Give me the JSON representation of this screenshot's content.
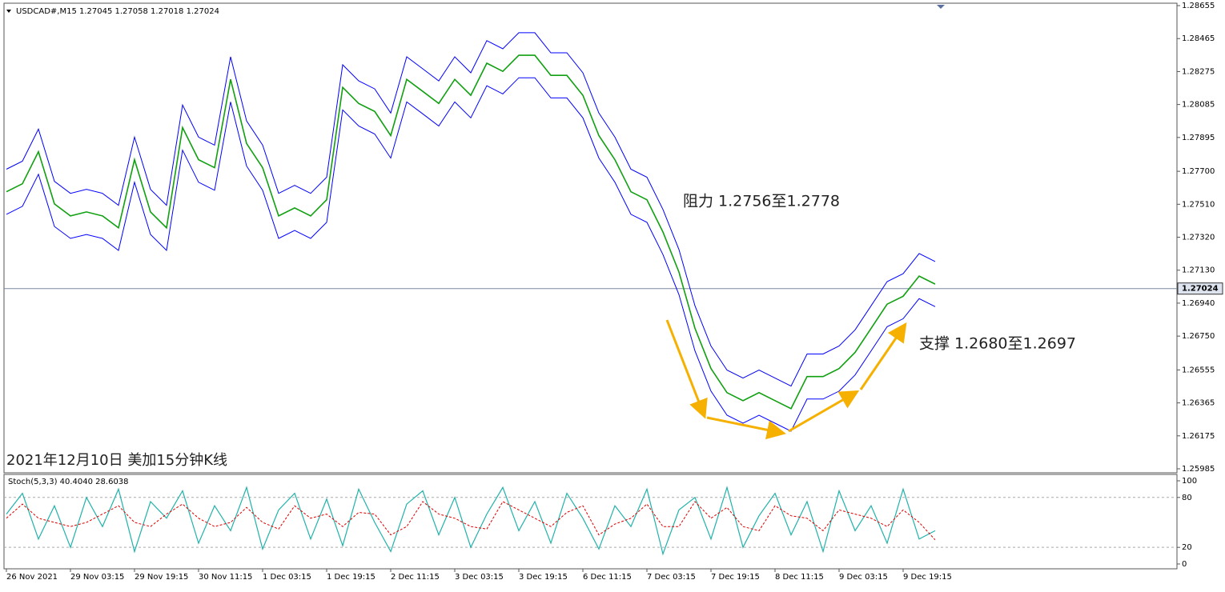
{
  "chart_data": [
    {
      "type": "line",
      "header": "USDCAD#,M15  1.27045 1.27058 1.27018 1.27024",
      "caption": "2021年12月10日 美加15分钟K线",
      "annotations": [
        "阻力 1.2756至1.2778",
        "支撑 1.2680至1.2697"
      ],
      "last_price": 1.27024,
      "xlim": [
        -2.4,
        1169.6
      ],
      "ylim": [
        1.25962,
        1.28669
      ],
      "yticks": [
        1.28655,
        1.28465,
        1.28275,
        1.28085,
        1.27895,
        {
          "value": 1.277,
          "label": "1.27700"
        },
        {
          "value": 1.2751,
          "label": "1.27510"
        },
        {
          "value": 1.2732,
          "label": "1.27320"
        },
        {
          "value": 1.2713,
          "label": "1.27130"
        },
        {
          "value": 1.2694,
          "label": "1.26940"
        },
        {
          "value": 1.2675,
          "label": "1.26750"
        },
        1.26555,
        1.26365,
        1.26175,
        1.25985
      ],
      "x": [
        0,
        16,
        32,
        48,
        64,
        80,
        96,
        112,
        128,
        144,
        160,
        176,
        192,
        208,
        224,
        240,
        256,
        272,
        288,
        304,
        320,
        336,
        352,
        368,
        384,
        400,
        416,
        432,
        448,
        464,
        480,
        496,
        512,
        528,
        544,
        560,
        576,
        592,
        608,
        624,
        640,
        656,
        672,
        688,
        704,
        720,
        736,
        752,
        768,
        784,
        800,
        816,
        832,
        848,
        864,
        880,
        896,
        912,
        928
      ],
      "series": [
        {
          "name": "Close",
          "color": "#10a010",
          "width": 1.6,
          "values": [
            1.27582,
            1.27628,
            1.27813,
            1.27512,
            1.27443,
            1.27466,
            1.27443,
            1.27374,
            1.27767,
            1.27466,
            1.27374,
            1.27952,
            1.27767,
            1.27721,
            1.2823,
            1.2786,
            1.27721,
            1.27443,
            1.27489,
            1.27443,
            1.27536,
            1.28184,
            1.28091,
            1.28045,
            1.27906,
            1.2823,
            1.28161,
            1.28091,
            1.2823,
            1.28138,
            1.28323,
            1.28276,
            1.28369,
            1.28369,
            1.28253,
            1.28253,
            1.28138,
            1.27906,
            1.27767,
            1.27582,
            1.27536,
            1.2735,
            1.27119,
            1.26795,
            1.26563,
            1.26424,
            1.26378,
            1.26424,
            1.26378,
            1.26332,
            1.26517,
            1.26517,
            1.26563,
            1.26656,
            1.26795,
            1.26934,
            1.2698,
            1.27096,
            1.2705
          ]
        },
        {
          "name": "Upper",
          "color": "#0000ff",
          "width": 1,
          "values": [
            1.27712,
            1.27758,
            1.27943,
            1.27642,
            1.27573,
            1.27596,
            1.27573,
            1.27504,
            1.27897,
            1.27596,
            1.27504,
            1.28082,
            1.27897,
            1.27851,
            1.2836,
            1.2799,
            1.27851,
            1.27573,
            1.27619,
            1.27573,
            1.27666,
            1.28314,
            1.28221,
            1.28175,
            1.28036,
            1.2836,
            1.28291,
            1.28221,
            1.2836,
            1.28268,
            1.28453,
            1.28406,
            1.28499,
            1.28499,
            1.28383,
            1.28383,
            1.28268,
            1.28036,
            1.27897,
            1.27712,
            1.27666,
            1.2748,
            1.27249,
            1.26925,
            1.26693,
            1.26554,
            1.26508,
            1.26554,
            1.26508,
            1.26462,
            1.26647,
            1.26647,
            1.26693,
            1.26786,
            1.26925,
            1.27064,
            1.2711,
            1.27226,
            1.2718
          ]
        },
        {
          "name": "Lower",
          "color": "#0000ff",
          "width": 1,
          "values": [
            1.27452,
            1.27498,
            1.27683,
            1.27382,
            1.27313,
            1.27336,
            1.27313,
            1.27244,
            1.27637,
            1.27336,
            1.27244,
            1.27822,
            1.27637,
            1.27591,
            1.281,
            1.2773,
            1.27591,
            1.27313,
            1.27359,
            1.27313,
            1.27406,
            1.28054,
            1.27961,
            1.27915,
            1.27776,
            1.281,
            1.28031,
            1.27961,
            1.281,
            1.28008,
            1.28193,
            1.28146,
            1.28239,
            1.28239,
            1.28123,
            1.28123,
            1.28008,
            1.27776,
            1.27637,
            1.27452,
            1.27406,
            1.2722,
            1.26989,
            1.26665,
            1.26433,
            1.26294,
            1.26248,
            1.26294,
            1.26248,
            1.26202,
            1.26387,
            1.26387,
            1.26433,
            1.26526,
            1.26665,
            1.26804,
            1.2685,
            1.26966,
            1.2692
          ]
        }
      ]
    },
    {
      "type": "line",
      "label": "Stoch(5,3,3) 40.4040 28.6038",
      "xlim": [
        -2.4,
        1169.6
      ],
      "ylim": [
        -5.8,
        107.7
      ],
      "yticks": [
        0,
        20,
        80,
        100
      ],
      "levels": [
        20,
        80
      ],
      "xticks": [
        {
          "value": 0,
          "label": "26 Nov 2021"
        },
        {
          "value": 64,
          "label": "29 Nov 03:15"
        },
        {
          "value": 128,
          "label": "29 Nov 19:15"
        },
        {
          "value": 192,
          "label": "30 Nov 11:15"
        },
        {
          "value": 256,
          "label": "1 Dec 03:15"
        },
        {
          "value": 320,
          "label": "1 Dec 19:15"
        },
        {
          "value": 384,
          "label": "2 Dec 11:15"
        },
        {
          "value": 448,
          "label": "3 Dec 03:15"
        },
        {
          "value": 512,
          "label": "3 Dec 19:15"
        },
        {
          "value": 576,
          "label": "6 Dec 11:15"
        },
        {
          "value": 640,
          "label": "7 Dec 03:15"
        },
        {
          "value": 704,
          "label": "7 Dec 19:15"
        },
        {
          "value": 768,
          "label": "8 Dec 11:15"
        },
        {
          "value": 832,
          "label": "9 Dec 03:15"
        },
        {
          "value": 896,
          "label": "9 Dec 19:15"
        }
      ],
      "x": [
        0,
        16,
        32,
        48,
        64,
        80,
        96,
        112,
        128,
        144,
        160,
        176,
        192,
        208,
        224,
        240,
        256,
        272,
        288,
        304,
        320,
        336,
        352,
        368,
        384,
        400,
        416,
        432,
        448,
        464,
        480,
        496,
        512,
        528,
        544,
        560,
        576,
        592,
        608,
        624,
        640,
        656,
        672,
        688,
        704,
        720,
        736,
        752,
        768,
        784,
        800,
        816,
        832,
        848,
        864,
        880,
        896,
        912,
        928
      ],
      "series": [
        {
          "name": "Main",
          "color": "#20b2aa",
          "width": 1.2,
          "values": [
            60,
            85,
            30,
            70,
            20,
            80,
            45,
            90,
            15,
            75,
            55,
            88,
            25,
            70,
            40,
            92,
            18,
            65,
            85,
            30,
            78,
            22,
            90,
            50,
            15,
            72,
            88,
            35,
            80,
            20,
            60,
            92,
            40,
            75,
            25,
            85,
            55,
            18,
            70,
            45,
            90,
            12,
            65,
            80,
            30,
            92,
            20,
            58,
            85,
            35,
            75,
            15,
            88,
            40,
            70,
            25,
            90,
            30,
            40
          ]
        },
        {
          "name": "Signal",
          "color": "#e00000",
          "width": 1,
          "dashed": true,
          "values": [
            55,
            72,
            55,
            50,
            45,
            50,
            60,
            70,
            50,
            45,
            60,
            72,
            55,
            45,
            50,
            68,
            50,
            42,
            70,
            55,
            60,
            45,
            62,
            60,
            35,
            45,
            75,
            60,
            55,
            45,
            42,
            75,
            65,
            55,
            45,
            62,
            70,
            35,
            48,
            55,
            72,
            45,
            45,
            75,
            55,
            68,
            45,
            40,
            70,
            58,
            55,
            40,
            65,
            60,
            55,
            45,
            65,
            50,
            29
          ]
        }
      ]
    }
  ]
}
